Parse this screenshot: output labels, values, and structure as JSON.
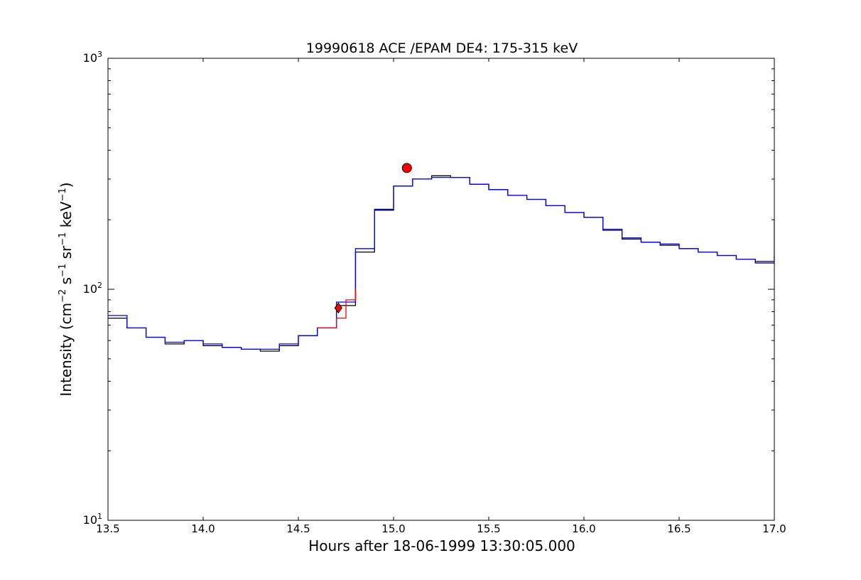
{
  "chart_data": {
    "type": "line",
    "title": "19990618 ACE /EPAM DE4: 175-315 keV",
    "xlabel": "Hours after 18-06-1999 13:30:05.000",
    "ylabel_parts": {
      "base": "Intensity (cm",
      "e1": "−2",
      "s": " s",
      "e2": "−1",
      "sr": " sr",
      "e3": "−1",
      "kev": " keV",
      "e4": "−1",
      "close": ")"
    },
    "xlim": [
      13.5,
      17.0
    ],
    "ylim": [
      10,
      1000
    ],
    "yscale": "log",
    "grid": false,
    "x_ticks": [
      {
        "value": 13.5,
        "label": "13.5"
      },
      {
        "value": 14.0,
        "label": "14.0"
      },
      {
        "value": 14.5,
        "label": "14.5"
      },
      {
        "value": 15.0,
        "label": "15.0"
      },
      {
        "value": 15.5,
        "label": "15.5"
      },
      {
        "value": 16.0,
        "label": "16.0"
      },
      {
        "value": 16.5,
        "label": "16.5"
      },
      {
        "value": 17.0,
        "label": "17.0"
      }
    ],
    "y_ticks": [
      {
        "value": 10,
        "base": "10",
        "exp": "1"
      },
      {
        "value": 100,
        "base": "10",
        "exp": "2"
      },
      {
        "value": 1000,
        "base": "10",
        "exp": "3"
      }
    ],
    "series": [
      {
        "color": "#000000",
        "style": "steps",
        "x": [
          13.5,
          13.6,
          13.7,
          13.8,
          13.9,
          14.0,
          14.1,
          14.2,
          14.3,
          14.4,
          14.5,
          14.6,
          14.7,
          14.8,
          14.9,
          15.0,
          15.1,
          15.2,
          15.3,
          15.4,
          15.5,
          15.6,
          15.7,
          15.8,
          15.9,
          16.0,
          16.1,
          16.2,
          16.3,
          16.4,
          16.5,
          16.6,
          16.7,
          16.8,
          16.9,
          17.0
        ],
        "y": [
          75,
          68,
          62,
          58,
          60,
          57,
          56,
          55,
          54,
          57,
          63,
          68,
          85,
          145,
          220,
          280,
          300,
          310,
          305,
          285,
          270,
          255,
          245,
          230,
          215,
          205,
          180,
          165,
          160,
          155,
          150,
          145,
          140,
          135,
          130,
          200
        ]
      },
      {
        "color": "#0000ff",
        "style": "steps",
        "x": [
          13.5,
          13.6,
          13.7,
          13.8,
          13.9,
          14.0,
          14.1,
          14.2,
          14.3,
          14.4,
          14.5,
          14.6,
          14.7,
          14.8,
          14.9,
          15.0,
          15.1,
          15.2,
          15.3,
          15.4,
          15.5,
          15.6,
          15.7,
          15.8,
          15.9,
          16.0,
          16.1,
          16.2,
          16.3,
          16.4,
          16.5,
          16.6,
          16.7,
          16.8,
          16.9,
          17.0
        ],
        "y": [
          77,
          68,
          62,
          59,
          60,
          58,
          56,
          55,
          55,
          58,
          63,
          68,
          88,
          150,
          222,
          280,
          300,
          305,
          305,
          285,
          270,
          255,
          245,
          230,
          215,
          205,
          182,
          167,
          160,
          157,
          150,
          145,
          140,
          135,
          132,
          140
        ]
      },
      {
        "color": "#ff0000",
        "style": "steps",
        "x": [
          14.6,
          14.7,
          14.75,
          14.8
        ],
        "y": [
          68,
          75,
          90,
          100
        ]
      }
    ],
    "markers": [
      {
        "shape": "diamond",
        "x": 14.71,
        "y": 83,
        "color": "#ff0000"
      },
      {
        "shape": "circle",
        "x": 15.07,
        "y": 335,
        "color": "#ff0000"
      }
    ]
  }
}
